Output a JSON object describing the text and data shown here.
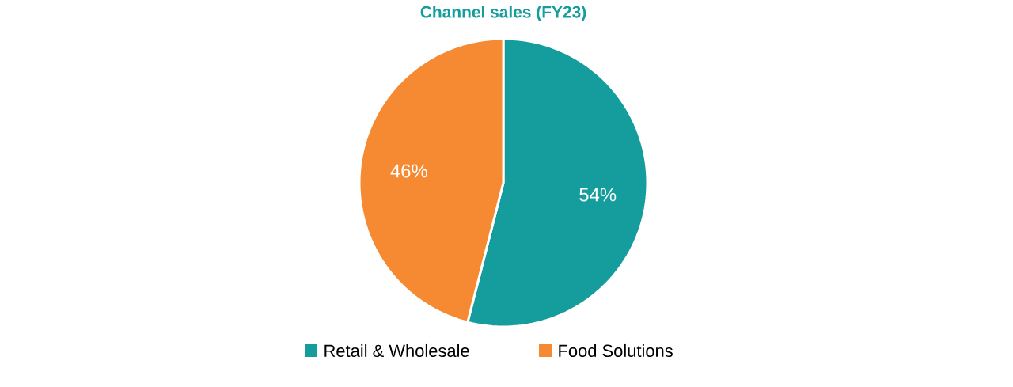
{
  "chart_data": {
    "type": "pie",
    "title": "Channel sales (FY23)",
    "categories": [
      "Retail & Wholesale",
      "Food Solutions"
    ],
    "values": [
      54,
      46
    ],
    "colors": [
      "#159c9c",
      "#f58a32"
    ],
    "value_labels": [
      "54%",
      "46%"
    ],
    "legend": "bottom"
  }
}
